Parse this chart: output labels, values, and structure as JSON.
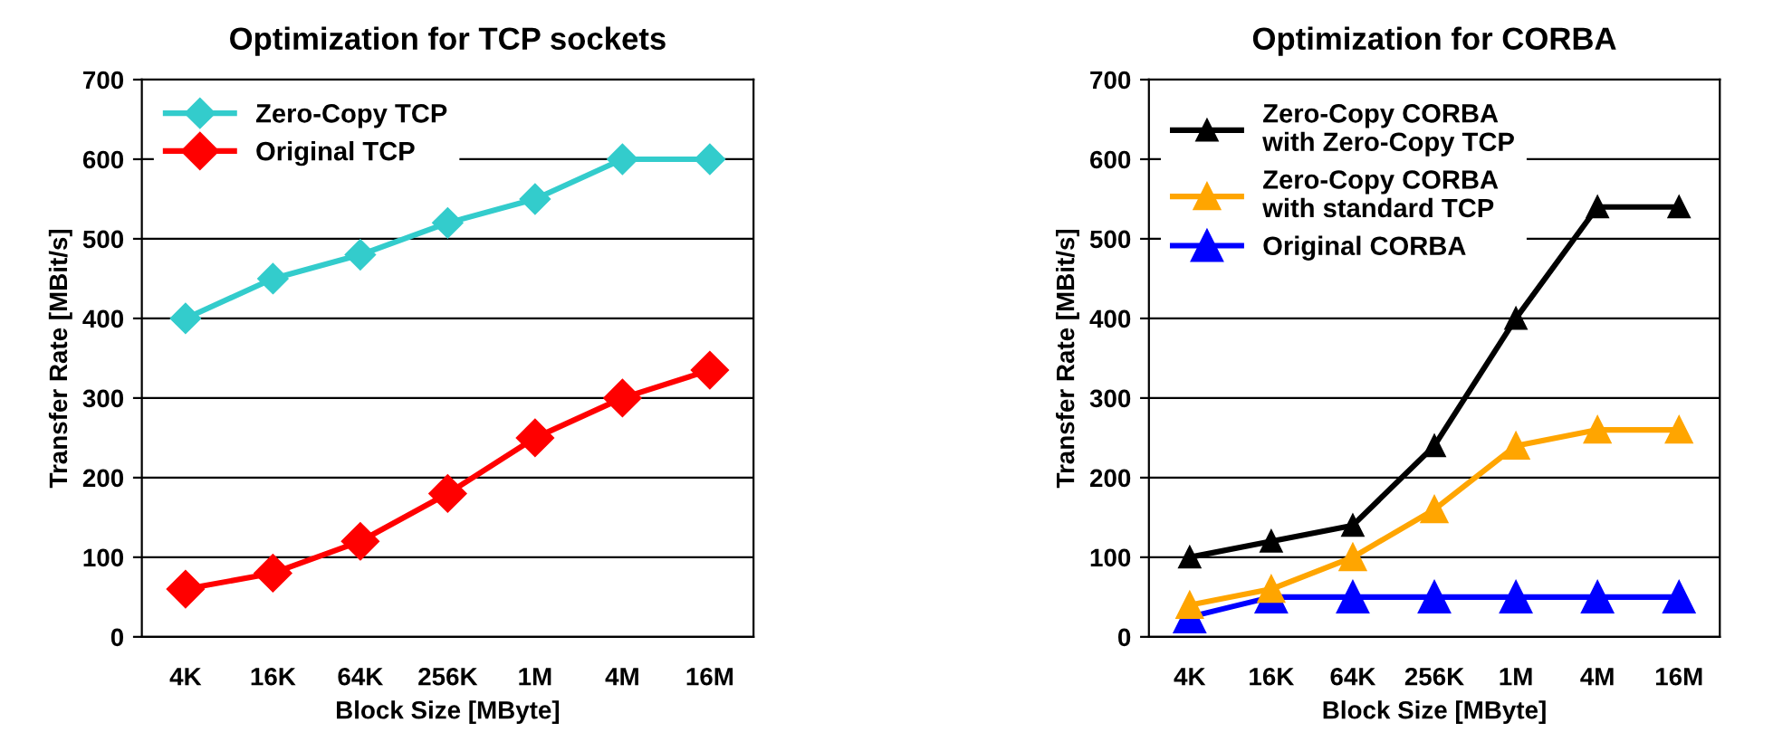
{
  "chart_data": [
    {
      "type": "line",
      "title": "Optimization for TCP sockets",
      "xlabel": "Block Size [MByte]",
      "ylabel": "Transfer Rate [MBit/s]",
      "categories": [
        "4K",
        "16K",
        "64K",
        "256K",
        "1M",
        "4M",
        "16M"
      ],
      "series": [
        {
          "name": "Zero-Copy TCP",
          "color": "#33cccc",
          "marker": "diamond",
          "values": [
            400,
            450,
            480,
            520,
            550,
            600,
            600
          ]
        },
        {
          "name": "Original TCP",
          "color": "#ff0000",
          "marker": "diamond",
          "values": [
            60,
            80,
            120,
            180,
            250,
            300,
            335
          ]
        }
      ],
      "ylim": [
        0,
        700
      ],
      "yticks": [
        0,
        100,
        200,
        300,
        400,
        500,
        600,
        700
      ],
      "grid": "y",
      "legend": "top left",
      "line_style": "solid"
    },
    {
      "type": "line",
      "title": "Optimization for CORBA",
      "xlabel": "Block Size [MByte]",
      "ylabel": "Transfer Rate [MBit/s]",
      "categories": [
        "4K",
        "16K",
        "64K",
        "256K",
        "1M",
        "4M",
        "16M"
      ],
      "series": [
        {
          "name": "Zero-Copy CORBA\nwith Zero-Copy TCP",
          "color": "#000000",
          "marker": "triangle",
          "values": [
            100,
            120,
            140,
            240,
            400,
            540,
            540
          ]
        },
        {
          "name": "Zero-Copy CORBA\nwith standard TCP",
          "color": "#ffa500",
          "marker": "triangle",
          "values": [
            40,
            60,
            100,
            160,
            240,
            260,
            260
          ]
        },
        {
          "name": "Original CORBA",
          "color": "#0000ff",
          "marker": "triangle",
          "values": [
            25,
            50,
            50,
            50,
            50,
            50,
            50
          ]
        }
      ],
      "ylim": [
        0,
        700
      ],
      "yticks": [
        0,
        100,
        200,
        300,
        400,
        500,
        600,
        700
      ],
      "grid": "y",
      "legend": "top left",
      "line_style": "solid"
    }
  ]
}
